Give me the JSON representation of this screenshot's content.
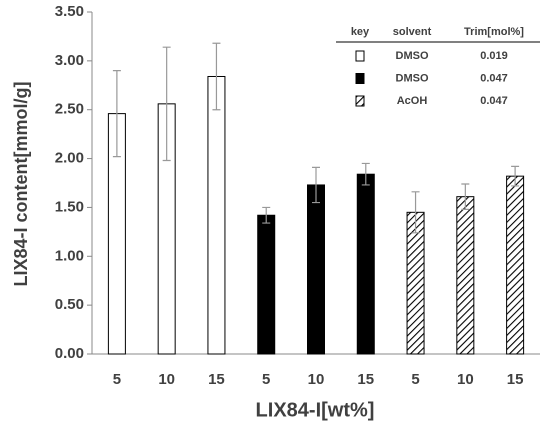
{
  "chart_data": {
    "type": "bar",
    "y_label": "LIX84-I content[mmol/g]",
    "x_label": "LIX84-I[wt%]",
    "categories": [
      "5",
      "10",
      "15",
      "5",
      "10",
      "15",
      "5",
      "10",
      "15"
    ],
    "ylim": [
      0,
      3.5
    ],
    "yticks": [
      {
        "value": 0,
        "label": "0.00"
      },
      {
        "value": 0.5,
        "label": "0.50"
      },
      {
        "value": 1,
        "label": "1.00"
      },
      {
        "value": 1.5,
        "label": "1.50"
      },
      {
        "value": 2,
        "label": "2.00"
      },
      {
        "value": 2.5,
        "label": "2.50"
      },
      {
        "value": 3,
        "label": "3.00"
      },
      {
        "value": 3.5,
        "label": "3.50"
      }
    ],
    "legend_headers": [
      "key",
      "solvent",
      "Trim[mol%]"
    ],
    "legend": "top-right",
    "series": [
      {
        "name": "DMSO",
        "trim": "0.019",
        "color": "#ffffff",
        "hatch": false,
        "values": [
          2.46,
          2.56,
          2.84,
          null,
          null,
          null,
          null,
          null,
          null
        ],
        "errors": [
          0.44,
          0.58,
          0.34,
          null,
          null,
          null,
          null,
          null,
          null
        ]
      },
      {
        "name": "DMSO",
        "trim": "0.047",
        "color": "#000000",
        "hatch": false,
        "values": [
          null,
          null,
          null,
          1.42,
          1.73,
          1.84,
          null,
          null,
          null
        ],
        "errors": [
          null,
          null,
          null,
          0.08,
          0.18,
          0.11,
          null,
          null,
          null
        ]
      },
      {
        "name": "AcOH",
        "trim": "0.047",
        "color": "#ffffff",
        "hatch": true,
        "values": [
          null,
          null,
          null,
          null,
          null,
          null,
          1.45,
          1.61,
          1.82
        ],
        "errors": [
          null,
          null,
          null,
          null,
          null,
          null,
          0.21,
          0.13,
          0.1
        ]
      }
    ]
  }
}
